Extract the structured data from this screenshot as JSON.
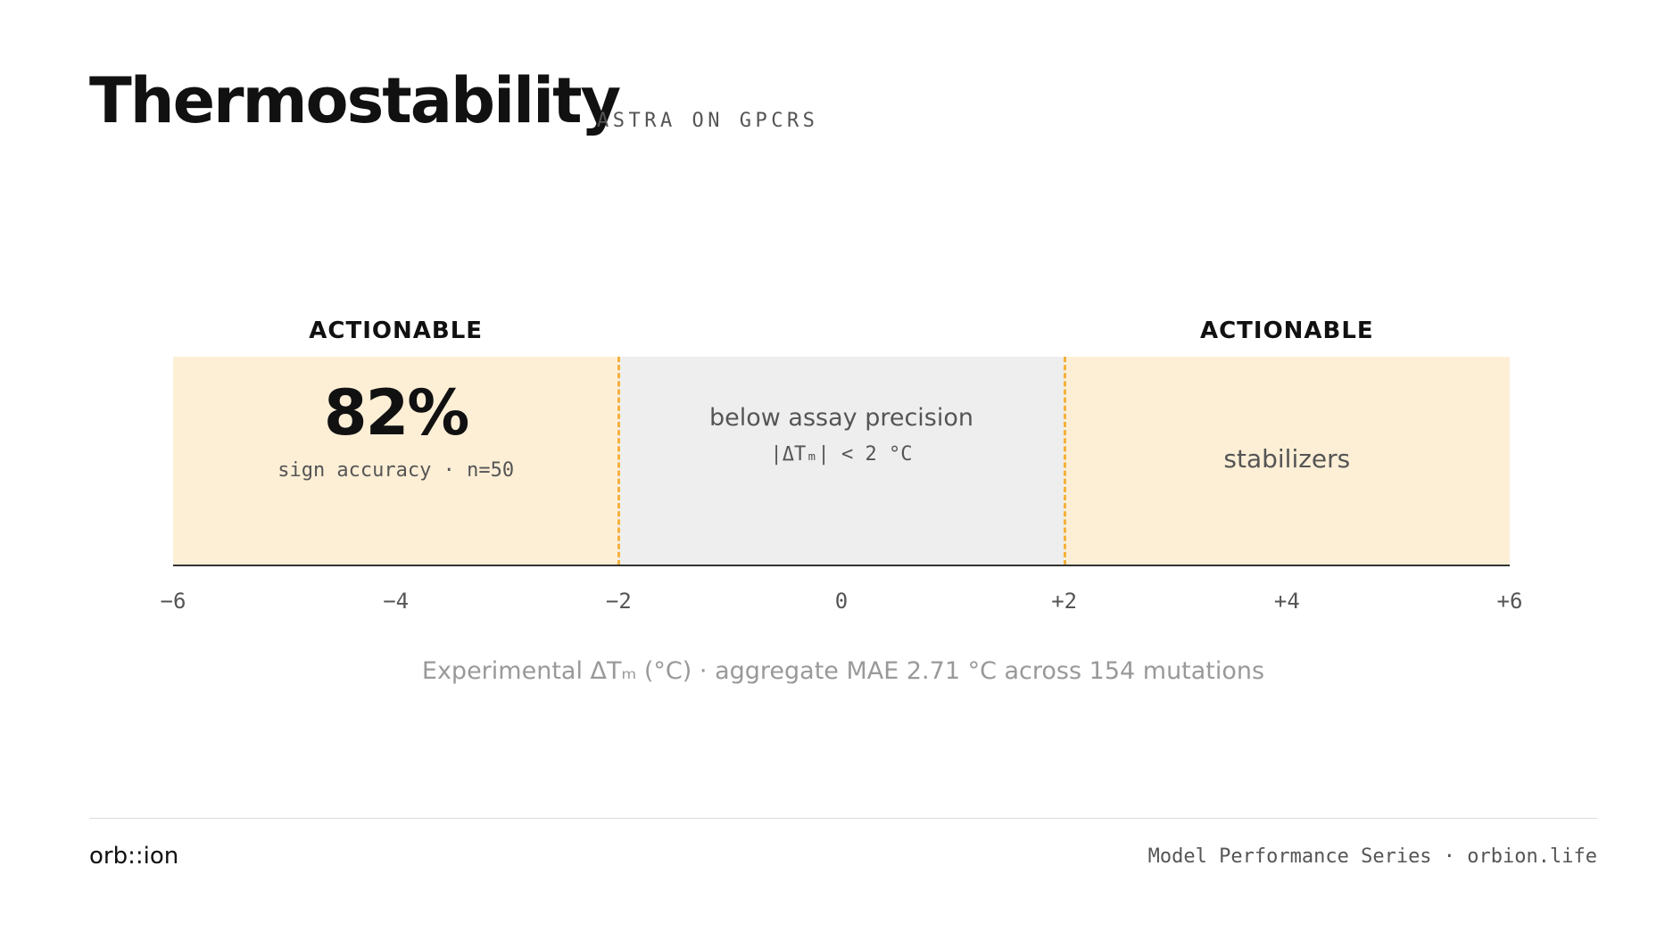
{
  "header": {
    "title": "Thermostability",
    "subtitle": "ASTRA ON GPCRS"
  },
  "chart_data": {
    "type": "range-bands",
    "x_axis": {
      "min": -6,
      "max": 6,
      "ticks": [
        -6,
        -4,
        -2,
        0,
        2,
        4,
        6
      ],
      "tick_labels": [
        "−6",
        "−4",
        "−2",
        "0",
        "+2",
        "+4",
        "+6"
      ],
      "caption": "Experimental ΔTₘ (°C) · aggregate MAE 2.71 °C across 154 mutations"
    },
    "zones": [
      {
        "from": -6,
        "to": -2,
        "kind": "actionable",
        "header": "ACTIONABLE",
        "stat": "82%",
        "caption": "sign accuracy · n=50"
      },
      {
        "from": -2,
        "to": 2,
        "kind": "precision",
        "title": "below assay precision",
        "range": "|ΔTₘ| < 2 °C"
      },
      {
        "from": 2,
        "to": 6,
        "kind": "actionable",
        "header": "ACTIONABLE",
        "label": "stabilizers"
      }
    ],
    "thresholds": [
      -2,
      2
    ],
    "colors": {
      "actionable": "#fdefd6",
      "precision": "#eeeeee",
      "threshold": "#f5b13a",
      "baseline": "#333333"
    }
  },
  "footer": {
    "brand": "orb::ion",
    "series": "Model Performance Series · orbion.life"
  }
}
